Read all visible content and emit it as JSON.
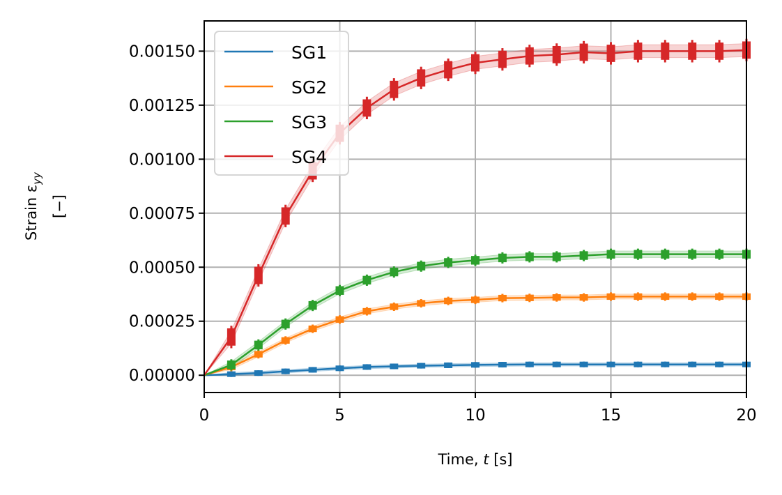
{
  "chart_data": {
    "type": "line",
    "xlabel": "Time, t [s]",
    "xlabel_parts": {
      "prefix": "Time, ",
      "var": "t",
      "unit": "[s]"
    },
    "ylabel_line1": "Strain ε",
    "ylabel_sub": "yy",
    "ylabel_line2": "[−]",
    "xlim": [
      0,
      20
    ],
    "ylim": [
      -8e-05,
      0.00164
    ],
    "xticks": [
      0,
      5,
      10,
      15,
      20
    ],
    "xtick_labels": [
      "0",
      "5",
      "10",
      "15",
      "20"
    ],
    "yticks": [
      0,
      0.00025,
      0.0005,
      0.00075,
      0.001,
      0.00125,
      0.0015
    ],
    "ytick_labels": [
      "0.00000",
      "0.00025",
      "0.00050",
      "0.00075",
      "0.00100",
      "0.00125",
      "0.00150"
    ],
    "grid": true,
    "legend_position": "top-left",
    "x": [
      0,
      1,
      2,
      3,
      4,
      5,
      6,
      7,
      8,
      9,
      10,
      11,
      12,
      13,
      14,
      15,
      16,
      17,
      18,
      19,
      20
    ],
    "series": [
      {
        "name": "SG1",
        "color": "#1f77b4",
        "error": 1e-05,
        "values": [
          0,
          5e-06,
          1e-05,
          1.8e-05,
          2.5e-05,
          3.2e-05,
          3.8e-05,
          4.1e-05,
          4.4e-05,
          4.6e-05,
          4.8e-05,
          4.9e-05,
          5e-05,
          5e-05,
          5e-05,
          5e-05,
          5e-05,
          5e-05,
          5e-05,
          5e-05,
          5e-05
        ]
      },
      {
        "name": "SG2",
        "color": "#ff7f0e",
        "error": 1.5e-05,
        "values": [
          0,
          3.8e-05,
          9.7e-05,
          0.000161,
          0.000215,
          0.000258,
          0.000296,
          0.000317,
          0.000333,
          0.000344,
          0.000349,
          0.000357,
          0.000358,
          0.00036,
          0.00036,
          0.000364,
          0.000364,
          0.000364,
          0.000364,
          0.000364,
          0.000364
        ]
      },
      {
        "name": "SG3",
        "color": "#2ca02c",
        "error": 2e-05,
        "values": [
          0,
          4.8e-05,
          0.00014,
          0.000237,
          0.000323,
          0.000392,
          0.00044,
          0.000478,
          0.000505,
          0.000522,
          0.000532,
          0.000543,
          0.000548,
          0.000548,
          0.000554,
          0.00056,
          0.00056,
          0.00056,
          0.00056,
          0.00056,
          0.00056
        ]
      },
      {
        "name": "SG4",
        "color": "#d62728",
        "error": 4e-05,
        "values": [
          0,
          0.000177,
          0.000462,
          0.000737,
          0.000946,
          0.00112,
          0.001237,
          0.001323,
          0.001376,
          0.001414,
          0.001446,
          0.001462,
          0.001478,
          0.001484,
          0.001495,
          0.00149,
          0.0015,
          0.0015,
          0.0015,
          0.0015,
          0.001505
        ]
      }
    ]
  }
}
